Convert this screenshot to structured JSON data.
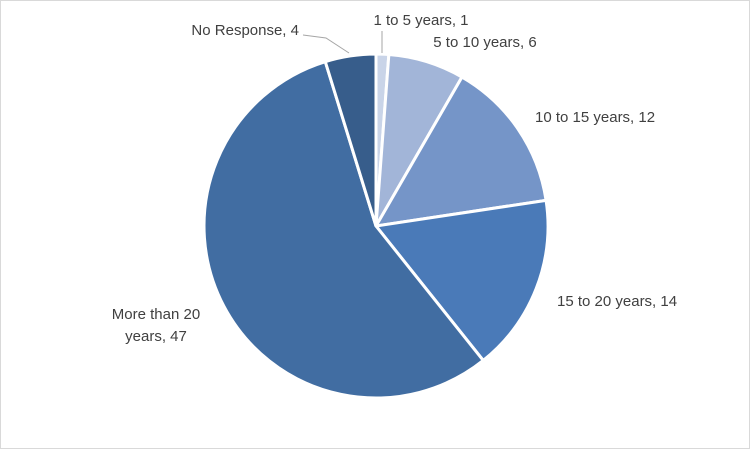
{
  "chart_data": {
    "type": "pie",
    "title": "",
    "categories": [
      "1 to 5 years",
      "5 to 10 years",
      "10 to 15 years",
      "15 to 20 years",
      "More than 20 years",
      "No Response"
    ],
    "values": [
      1,
      6,
      12,
      14,
      47,
      4
    ],
    "labels": [
      [
        "1 to 5 years, 1"
      ],
      [
        "5 to 10 years, 6"
      ],
      [
        "10 to 15 years, 12"
      ],
      [
        "15 to 20 years, 14"
      ],
      [
        "More than 20",
        "years, 47"
      ],
      [
        "No Response, 4"
      ]
    ],
    "colors": [
      "#c9d4e8",
      "#a2b5d8",
      "#7595c8",
      "#4a7ab8",
      "#416da2",
      "#375d8b"
    ],
    "start_angle_deg": 0,
    "direction": "clockwise",
    "legend": "none"
  }
}
